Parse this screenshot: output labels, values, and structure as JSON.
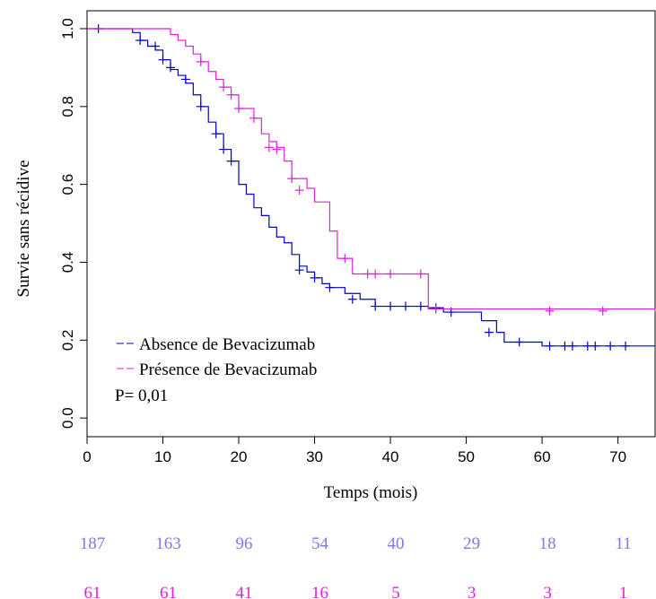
{
  "chart_data": {
    "type": "step",
    "xlabel": "Temps (mois)",
    "ylabel": "Survie sans récidive",
    "annotation": "P= 0,01",
    "xlim": [
      0,
      74.9
    ],
    "ylim": [
      -0.048,
      1.046
    ],
    "xticks": [
      0,
      10,
      20,
      30,
      40,
      50,
      60,
      70
    ],
    "yticks": [
      {
        "value": 0,
        "label": "0.0"
      },
      {
        "value": 0.2,
        "label": "0.2"
      },
      {
        "value": 0.4,
        "label": "0.4"
      },
      {
        "value": 0.6,
        "label": "0.6"
      },
      {
        "value": 0.8,
        "label": "0.8"
      },
      {
        "value": 1,
        "label": "1.0"
      }
    ],
    "series": [
      {
        "name": "Absence de Bevacizumab",
        "color": "#0000cd",
        "x": [
          0,
          6,
          7,
          8,
          9,
          10,
          11,
          12,
          13,
          14,
          15,
          16,
          17,
          18,
          19,
          20,
          21,
          22,
          23,
          24,
          25,
          26,
          27,
          28,
          29,
          30,
          31,
          32,
          34,
          36,
          38,
          45,
          47,
          52,
          54,
          55,
          60,
          74.9
        ],
        "values": [
          1.0,
          0.99,
          0.97,
          0.955,
          0.945,
          0.92,
          0.895,
          0.88,
          0.86,
          0.83,
          0.8,
          0.76,
          0.73,
          0.69,
          0.66,
          0.6,
          0.575,
          0.54,
          0.52,
          0.49,
          0.465,
          0.45,
          0.42,
          0.39,
          0.375,
          0.36,
          0.345,
          0.335,
          0.32,
          0.305,
          0.287,
          0.283,
          0.272,
          0.25,
          0.22,
          0.195,
          0.185,
          0.185
        ],
        "censor_x": [
          1.5,
          7,
          9,
          10,
          11,
          13,
          15,
          17,
          18,
          19,
          28,
          30,
          32,
          35,
          38,
          40,
          42,
          44,
          46,
          48,
          53,
          57,
          61,
          63,
          64,
          66,
          67,
          69,
          71
        ],
        "censor_values": [
          1.0,
          0.97,
          0.955,
          0.92,
          0.9,
          0.87,
          0.8,
          0.73,
          0.69,
          0.66,
          0.38,
          0.36,
          0.335,
          0.305,
          0.287,
          0.287,
          0.287,
          0.287,
          0.283,
          0.272,
          0.22,
          0.195,
          0.185,
          0.185,
          0.185,
          0.185,
          0.185,
          0.185,
          0.185
        ],
        "at_risk": [
          187,
          163,
          96,
          54,
          40,
          29,
          18,
          11
        ],
        "at_risk_color": "#7a7ae8"
      },
      {
        "name": "Présence de Bevacizumab",
        "color": "#e020e0",
        "x": [
          0,
          11,
          12,
          13,
          14,
          15,
          16,
          17,
          18,
          19,
          20,
          22,
          23,
          24,
          25,
          26,
          27,
          29,
          30,
          32,
          33,
          35,
          45,
          74.9
        ],
        "values": [
          1.0,
          0.985,
          0.97,
          0.955,
          0.935,
          0.915,
          0.89,
          0.87,
          0.85,
          0.83,
          0.795,
          0.77,
          0.73,
          0.71,
          0.695,
          0.66,
          0.615,
          0.59,
          0.555,
          0.48,
          0.41,
          0.37,
          0.28,
          0.275
        ],
        "censor_x": [
          15,
          18,
          19,
          20,
          22,
          24,
          25,
          27,
          28,
          34,
          37,
          38,
          40,
          44,
          46,
          61,
          68
        ],
        "censor_values": [
          0.915,
          0.85,
          0.83,
          0.795,
          0.77,
          0.695,
          0.69,
          0.615,
          0.585,
          0.41,
          0.37,
          0.37,
          0.37,
          0.37,
          0.28,
          0.275,
          0.275
        ],
        "at_risk": [
          61,
          61,
          41,
          16,
          5,
          3,
          3,
          1
        ],
        "at_risk_color": "#e020e0"
      }
    ]
  }
}
